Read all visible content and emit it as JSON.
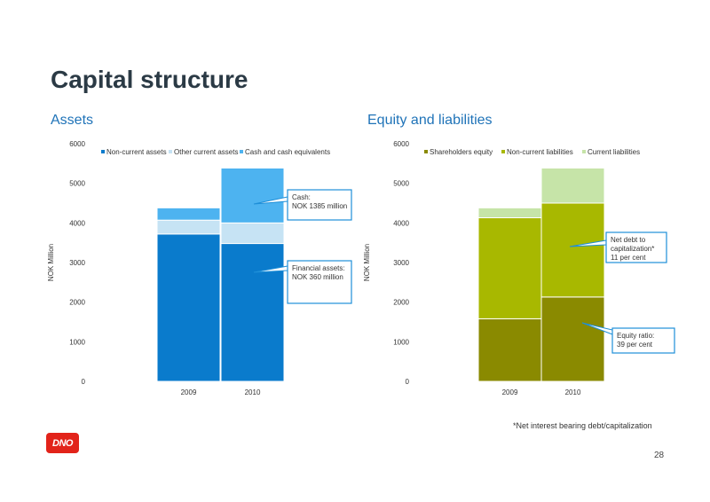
{
  "page": {
    "title": "Capital structure",
    "footnote": "*Net interest bearing debt/capitalization",
    "page_number": "28",
    "logo_text": "DNO"
  },
  "chart_data": [
    {
      "type": "bar",
      "stacked": true,
      "subtitle": "Assets",
      "ylabel": "NOK Million",
      "categories": [
        "2009",
        "2010"
      ],
      "ylim": [
        0,
        6000
      ],
      "yticks": [
        0,
        1000,
        2000,
        3000,
        4000,
        5000,
        6000
      ],
      "legend_position": "top",
      "series": [
        {
          "name": "Non-current assets",
          "color": "#0a7bcc",
          "values": [
            3720,
            3480
          ]
        },
        {
          "name": "Other current assets",
          "color": "#c6e3f4",
          "values": [
            350,
            520
          ]
        },
        {
          "name": "Cash and cash equivalents",
          "color": "#4db3f0",
          "values": [
            310,
            1385
          ]
        }
      ],
      "annotations": [
        {
          "lines": [
            "Cash:",
            "NOK 1385 million"
          ],
          "color": "#1f8fd8"
        },
        {
          "lines": [
            "Financial assets:",
            "NOK  360 million"
          ],
          "color": "#1f8fd8"
        }
      ]
    },
    {
      "type": "bar",
      "stacked": true,
      "subtitle": "Equity and liabilities",
      "ylabel": "NOK Million",
      "categories": [
        "2009",
        "2010"
      ],
      "ylim": [
        0,
        6000
      ],
      "yticks": [
        0,
        1000,
        2000,
        3000,
        4000,
        5000,
        6000
      ],
      "legend_position": "top",
      "series": [
        {
          "name": "Shareholders equity",
          "color": "#8a8a00",
          "values": [
            1580,
            2130
          ]
        },
        {
          "name": "Non-current liabilities",
          "color": "#a8b800",
          "values": [
            2550,
            2370
          ]
        },
        {
          "name": "Current liabilities",
          "color": "#c6e4a8",
          "values": [
            250,
            885
          ]
        }
      ],
      "annotations": [
        {
          "lines": [
            "Net debt to",
            "capitalization*",
            "11 per cent"
          ],
          "color": "#1f8fd8"
        },
        {
          "lines": [
            "Equity ratio:",
            "39 per cent"
          ],
          "color": "#1f8fd8"
        }
      ]
    }
  ]
}
